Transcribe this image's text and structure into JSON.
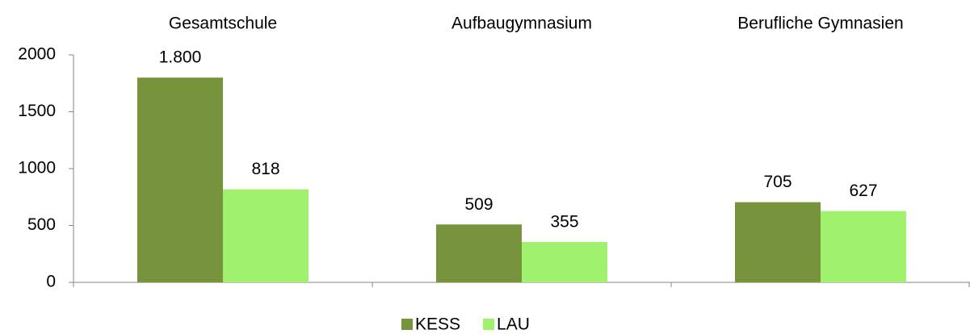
{
  "chart_data": {
    "type": "bar",
    "categories": [
      "Gesamtschule",
      "Aufbaugymnasium",
      "Berufliche Gymnasien"
    ],
    "series": [
      {
        "name": "KESS",
        "color": "#77933c",
        "values": [
          1800,
          509,
          705
        ],
        "value_labels": [
          "1.800",
          "509",
          "705"
        ]
      },
      {
        "name": "LAU",
        "color": "#a0f26e",
        "values": [
          818,
          355,
          627
        ]
      }
    ],
    "ylim": [
      0,
      2000
    ],
    "yticks": [
      0,
      500,
      1000,
      1500,
      2000
    ]
  }
}
